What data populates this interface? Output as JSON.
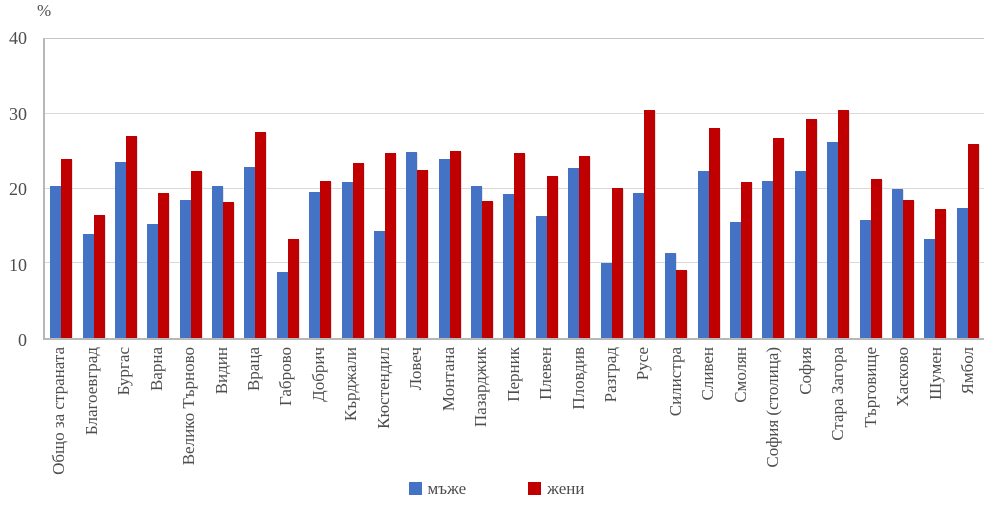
{
  "chart_data": {
    "type": "bar",
    "title": "",
    "ylabel": "%",
    "xlabel": "",
    "ylim": [
      0,
      40
    ],
    "yticks": [
      0,
      10,
      20,
      30,
      40
    ],
    "grid": true,
    "legend_position": "bottom",
    "categories": [
      "Общо за страната",
      "Благоевград",
      "Бургас",
      "Варна",
      "Велико Търново",
      "Видин",
      "Враца",
      "Габрово",
      "Добрич",
      "Кърджали",
      "Кюстендил",
      "Ловеч",
      "Монтана",
      "Пазарджик",
      "Перник",
      "Плевен",
      "Пловдив",
      "Разград",
      "Русе",
      "Силистра",
      "Сливен",
      "Смолян",
      "София (столица)",
      "София",
      "Стара Загора",
      "Търговище",
      "Хасково",
      "Шумен",
      "Ямбол"
    ],
    "series": [
      {
        "name": "мъже",
        "color": "#4472C4",
        "values": [
          20.4,
          13.9,
          23.6,
          15.3,
          18.4,
          20.4,
          22.9,
          8.8,
          19.6,
          20.9,
          14.3,
          24.9,
          24.0,
          20.4,
          19.3,
          16.3,
          22.8,
          10.0,
          19.4,
          11.4,
          22.4,
          15.5,
          21.0,
          22.4,
          26.2,
          15.8,
          20.0,
          13.2,
          17.4
        ]
      },
      {
        "name": "жени",
        "color": "#C00000",
        "values": [
          24.0,
          16.4,
          27.0,
          19.4,
          22.4,
          18.2,
          27.6,
          13.3,
          21.0,
          23.4,
          24.7,
          22.5,
          25.0,
          18.3,
          24.8,
          21.7,
          24.4,
          20.1,
          30.5,
          9.1,
          28.1,
          20.9,
          26.8,
          29.3,
          30.5,
          21.3,
          18.4,
          17.2,
          26.0
        ]
      }
    ]
  }
}
